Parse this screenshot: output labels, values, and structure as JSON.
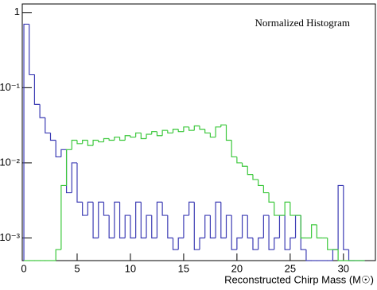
{
  "chart_data": {
    "type": "histogram",
    "annotation": "Normalized Histogram",
    "x_label": "Reconstructed Chirp Mass (M☉)",
    "log_y": true,
    "bins": [
      0,
      0.5,
      1,
      1.5,
      2,
      2.5,
      3,
      3.5,
      4,
      4.5,
      5,
      5.5,
      6,
      6.5,
      7,
      7.5,
      8,
      8.5,
      9,
      9.5,
      10,
      10.5,
      11,
      11.5,
      12,
      12.5,
      13,
      13.5,
      14,
      14.5,
      15,
      15.5,
      16,
      16.5,
      17,
      17.5,
      18,
      18.5,
      19,
      19.5,
      20,
      20.5,
      21,
      21.5,
      22,
      22.5,
      23,
      23.5,
      24,
      24.5,
      25,
      25.5,
      26,
      26.5,
      27,
      27.5,
      28,
      28.5,
      29,
      29.5,
      30,
      30.5,
      31,
      31.5,
      32
    ],
    "series": [
      {
        "color": "#3c3cb4",
        "values": [
          0.7,
          0.15,
          0.06,
          0.04,
          0.025,
          0.02,
          0.012,
          0.015,
          0.004,
          0.01,
          0.003,
          0.002,
          0.003,
          0.001,
          0.003,
          0.002,
          0.001,
          0.003,
          0.001,
          0.002,
          0.001,
          0.003,
          0.001,
          0.002,
          0.001,
          0.003,
          0.002,
          0.001,
          0.0007,
          0.001,
          0.002,
          0.003,
          0.0007,
          0.001,
          0.002,
          0.001,
          0.003,
          0.001,
          0.002,
          0.0007,
          0.001,
          0.002,
          0.001,
          0.0007,
          0.001,
          0.002,
          0.0007,
          0.001,
          0.002,
          0.0007,
          0.001,
          0.002,
          0.0007,
          0,
          0,
          0,
          0,
          0,
          0.0007,
          0.005,
          0.0007,
          0,
          0,
          0
        ]
      },
      {
        "color": "#3cc83c",
        "values": [
          0,
          0,
          0,
          0,
          0,
          0,
          0.0007,
          0.005,
          0.015,
          0.02,
          0.018,
          0.02,
          0.017,
          0.02,
          0.019,
          0.021,
          0.02,
          0.022,
          0.02,
          0.023,
          0.022,
          0.025,
          0.021,
          0.024,
          0.026,
          0.023,
          0.027,
          0.025,
          0.028,
          0.026,
          0.03,
          0.027,
          0.031,
          0.028,
          0.025,
          0.022,
          0.03,
          0.032,
          0.02,
          0.012,
          0.01,
          0.009,
          0.007,
          0.006,
          0.005,
          0.004,
          0.003,
          0.002,
          0.002,
          0.003,
          0.002,
          0.002,
          0.001,
          0.001,
          0.0015,
          0.001,
          0.001,
          0.0007,
          0.0007,
          0.0005,
          0.0005,
          0,
          0,
          0
        ]
      }
    ],
    "xlim": [
      -0.15,
      33
    ],
    "xticks": [
      0,
      5,
      10,
      15,
      20,
      25,
      30
    ],
    "ylim": [
      0.0005,
      1.3
    ],
    "yticks": [
      1,
      {
        "value": 0.1,
        "label": "10⁻¹"
      },
      {
        "value": 0.01,
        "label": "10⁻²"
      },
      {
        "value": 0.001,
        "label": "10⁻³"
      }
    ]
  }
}
